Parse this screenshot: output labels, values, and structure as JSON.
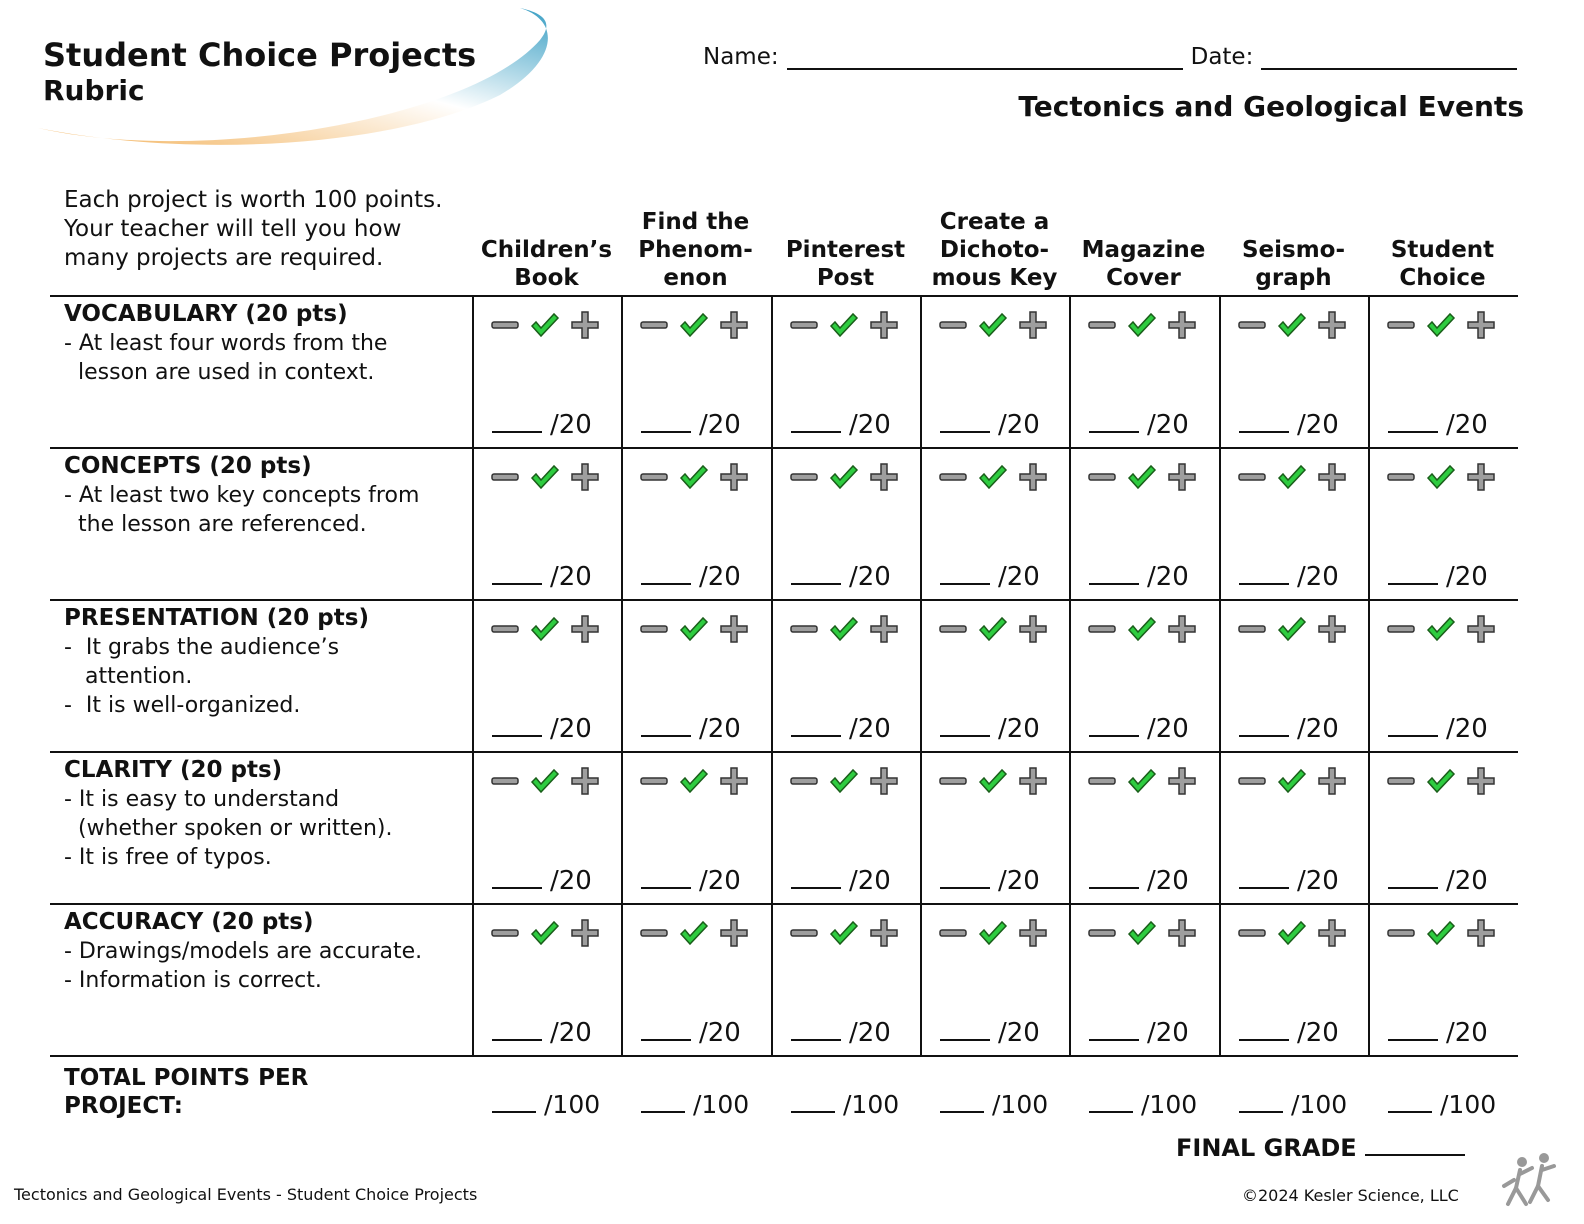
{
  "header": {
    "title": "Student Choice Projects",
    "subtitle": "Rubric",
    "name_label": "Name:",
    "date_label": "Date:",
    "unit_title": "Tectonics and Geological Events"
  },
  "intro": "Each project is worth 100 points. Your teacher will tell you how many projects are required.",
  "columns": [
    "Children’s\nBook",
    "Find the\nPhenom-\nenon",
    "Pinterest\nPost",
    "Create a\nDichoto-\nmous Key",
    "Magazine\nCover",
    "Seismo-\ngraph",
    "Student\nChoice"
  ],
  "rows": [
    {
      "title": "VOCABULARY (20 pts)",
      "bullets": [
        "- At least four words from the",
        "  lesson are used in context."
      ]
    },
    {
      "title": "CONCEPTS (20 pts)",
      "bullets": [
        "- At least two key concepts from",
        "  the lesson are referenced."
      ]
    },
    {
      "title": "PRESENTATION (20 pts)",
      "bullets": [
        "-  It grabs the audience’s",
        "   attention.",
        "-  It is well-organized."
      ]
    },
    {
      "title": "CLARITY (20 pts)",
      "bullets": [
        "- It is easy to understand",
        "  (whether spoken or written).",
        "- It is free of typos."
      ]
    },
    {
      "title": "ACCURACY (20 pts)",
      "bullets": [
        "- Drawings/models are accurate.",
        "- Information is correct."
      ]
    }
  ],
  "row_score": "/20",
  "total_label": "TOTAL POINTS PER PROJECT:",
  "total_score": "/100",
  "final_grade_label": "FINAL GRADE",
  "footer": {
    "left": "Tectonics and Geological Events - Student Choice Projects",
    "right": "©2024  Kesler Science, LLC"
  },
  "colors": {
    "check": "#2ecc40",
    "mark_gray": "#9e9e9e",
    "swoosh_blue": "#3a9fc4",
    "swoosh_orange": "#f2b25c"
  },
  "icons": [
    "minus-icon",
    "check-icon",
    "plus-icon",
    "kesler-logo-icon"
  ]
}
